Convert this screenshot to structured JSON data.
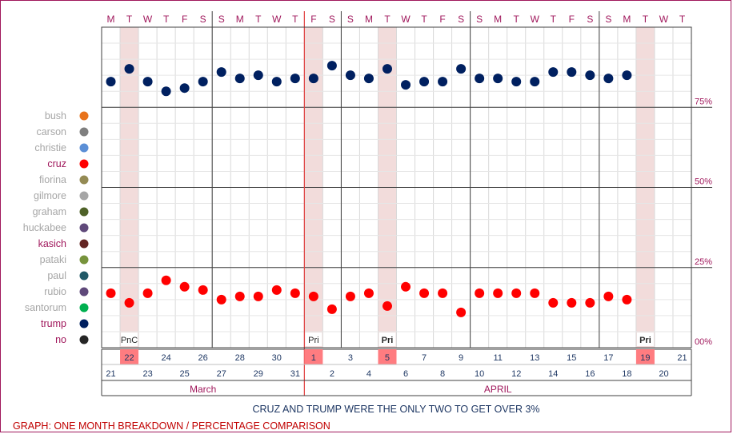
{
  "chart_data": {
    "type": "scatter",
    "weekdays": [
      "M",
      "T",
      "W",
      "T",
      "F",
      "S",
      "S",
      "M",
      "T",
      "W",
      "T",
      "F",
      "S",
      "S",
      "M",
      "T",
      "W",
      "T",
      "F",
      "S",
      "S",
      "M",
      "T",
      "W",
      "T",
      "F",
      "S",
      "S",
      "M",
      "T",
      "W",
      "T"
    ],
    "day_numbers": [
      21,
      22,
      23,
      24,
      25,
      26,
      27,
      28,
      29,
      30,
      31,
      1,
      2,
      3,
      4,
      5,
      6,
      7,
      8,
      9,
      10,
      11,
      12,
      13,
      14,
      15,
      16,
      17,
      18,
      19,
      20,
      21
    ],
    "months": [
      "March",
      "APRIL"
    ],
    "y_ticks": [
      "75%",
      "50%",
      "25%",
      "00%"
    ],
    "ylim": [
      0,
      100
    ],
    "events": [
      {
        "day": "22",
        "label": "PnC"
      },
      {
        "day": "1",
        "label": "Pri"
      },
      {
        "day": "5",
        "label": "Pri"
      },
      {
        "day": "19",
        "label": "Pri"
      }
    ],
    "legend": [
      {
        "name": "bush",
        "color": "#e8731c"
      },
      {
        "name": "carson",
        "color": "#7f7f7f"
      },
      {
        "name": "christie",
        "color": "#5b8fd6"
      },
      {
        "name": "cruz",
        "color": "#ff0000"
      },
      {
        "name": "fiorina",
        "color": "#948a54"
      },
      {
        "name": "gilmore",
        "color": "#a6a6a6"
      },
      {
        "name": "graham",
        "color": "#4f6228"
      },
      {
        "name": "huckabee",
        "color": "#604a7b"
      },
      {
        "name": "kasich",
        "color": "#632523"
      },
      {
        "name": "pataki",
        "color": "#77933c"
      },
      {
        "name": "paul",
        "color": "#215967"
      },
      {
        "name": "rubio",
        "color": "#5f497a"
      },
      {
        "name": "santorum",
        "color": "#00b050"
      },
      {
        "name": "trump",
        "color": "#002060"
      },
      {
        "name": "no",
        "color": "#262626"
      }
    ],
    "series": [
      {
        "name": "trump",
        "color": "#002060",
        "values": [
          83,
          87,
          83,
          80,
          81,
          83,
          86,
          84,
          85,
          83,
          84,
          84,
          88,
          85,
          84,
          87,
          82,
          83,
          83,
          87,
          84,
          84,
          83,
          83,
          86,
          86,
          85,
          84,
          85
        ]
      },
      {
        "name": "cruz",
        "color": "#ff0000",
        "values": [
          17,
          14,
          17,
          21,
          19,
          18,
          15,
          16,
          16,
          18,
          17,
          16,
          12,
          16,
          17,
          13,
          19,
          17,
          17,
          11,
          17,
          17,
          17,
          17,
          14,
          14,
          14,
          16,
          15
        ]
      }
    ],
    "annotation": "CRUZ AND TRUMP WERE THE ONLY TWO TO GET OVER 3%",
    "footer": "GRAPH: ONE MONTH BREAKDOWN / PERCENTAGE COMPARISON"
  }
}
